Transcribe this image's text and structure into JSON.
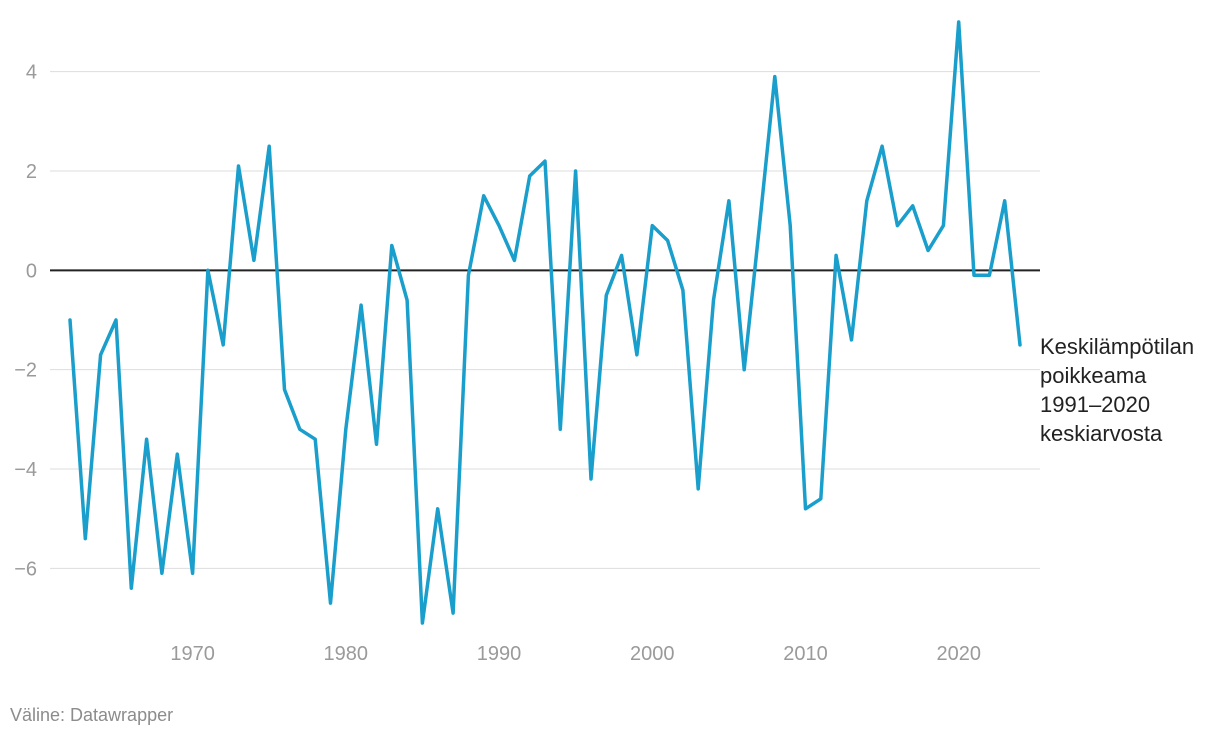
{
  "chart_data": {
    "type": "line",
    "series": [
      {
        "name": "Keskilämpötilan poikkeama 1991–2020 keskiarvosta",
        "name_lines": [
          "Keskilämpötilan",
          "poikkeama",
          "1991–2020",
          "keskiarvosta"
        ],
        "color": "#1a9ecb",
        "x": [
          1962,
          1963,
          1964,
          1965,
          1966,
          1967,
          1968,
          1969,
          1970,
          1971,
          1972,
          1973,
          1974,
          1975,
          1976,
          1977,
          1978,
          1979,
          1980,
          1981,
          1982,
          1983,
          1984,
          1985,
          1986,
          1987,
          1988,
          1989,
          1990,
          1991,
          1992,
          1993,
          1994,
          1995,
          1996,
          1997,
          1998,
          1999,
          2000,
          2001,
          2002,
          2003,
          2004,
          2005,
          2006,
          2007,
          2008,
          2009,
          2010,
          2011,
          2012,
          2013,
          2014,
          2015,
          2016,
          2017,
          2018,
          2019,
          2020,
          2021,
          2022,
          2023,
          2024
        ],
        "y": [
          -1.0,
          -5.4,
          -1.7,
          -1.0,
          -6.4,
          -3.4,
          -6.1,
          -3.7,
          -6.1,
          0.0,
          -1.5,
          2.1,
          0.2,
          2.5,
          -2.4,
          -3.2,
          -3.4,
          -6.7,
          -3.2,
          -0.7,
          -3.5,
          0.5,
          -0.6,
          -7.1,
          -4.8,
          -6.9,
          -0.1,
          1.5,
          0.9,
          0.2,
          1.9,
          2.2,
          -3.2,
          2.0,
          -4.2,
          -0.5,
          0.3,
          -1.7,
          0.9,
          0.6,
          -0.4,
          -4.4,
          -0.6,
          1.4,
          -2.0,
          0.9,
          3.9,
          0.9,
          -4.8,
          -4.6,
          0.3,
          -1.4,
          1.4,
          2.5,
          0.9,
          1.3,
          0.4,
          0.9,
          5.0,
          -0.1,
          -0.1,
          1.4,
          -1.5
        ]
      }
    ],
    "xlim": [
      1962,
      2024
    ],
    "ylim": [
      -7.1,
      5.0
    ],
    "x_ticks": [
      1970,
      1980,
      1990,
      2000,
      2010,
      2020
    ],
    "y_ticks": [
      -6,
      -4,
      -2,
      0,
      2,
      4
    ],
    "y_tick_labels": [
      "−6",
      "−4",
      "−2",
      "0",
      "2",
      "4"
    ],
    "grid": true,
    "zero_line": true,
    "grid_color": "#dddddd",
    "tick_color": "#9a9a9a",
    "zero_line_color": "#222222"
  },
  "source_text": "Väline: Datawrapper"
}
